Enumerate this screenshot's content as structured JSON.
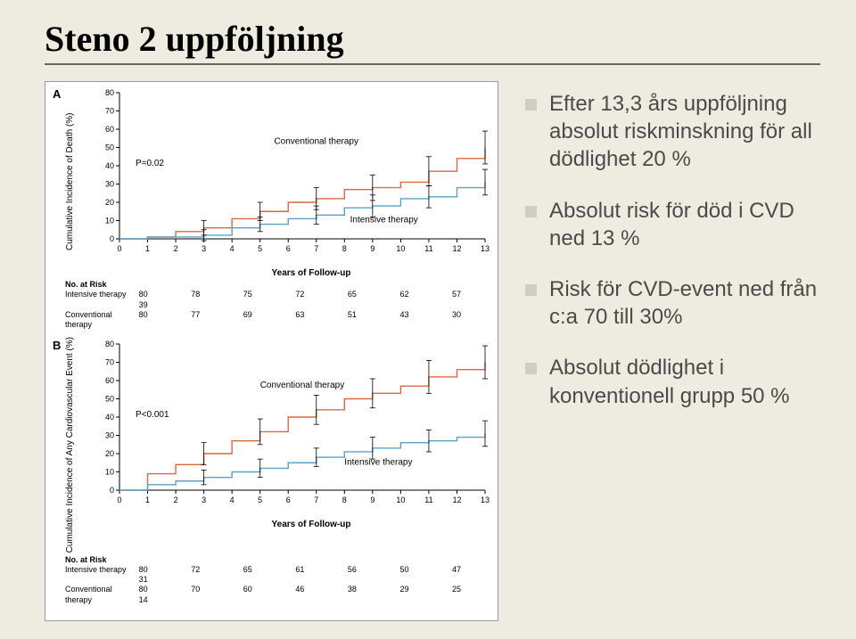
{
  "title": "Steno 2 uppföljning",
  "bullets": [
    "Efter 13,3 års uppföljning absolut riskminskning för all dödlighet 20 %",
    "Absolut risk för död i CVD ned 13 %",
    "Risk för CVD-event ned från c:a 70 till 30%",
    "Absolut dödlighet i konventionell grupp 50 %"
  ],
  "panelA": {
    "letter": "A",
    "ylabel": "Cumulative Incidence of Death (%)",
    "xlabel": "Years of Follow-up",
    "pvalue": "P=0.02",
    "ylim": [
      0,
      80
    ],
    "ytick_step": 10,
    "xlim": [
      0,
      13
    ],
    "xtick_step": 1,
    "series": [
      {
        "name": "Conventional therapy",
        "color": "#d96b3f",
        "points": [
          [
            0,
            0
          ],
          [
            1,
            1
          ],
          [
            2,
            4
          ],
          [
            3,
            6
          ],
          [
            4,
            11
          ],
          [
            5,
            15
          ],
          [
            6,
            20
          ],
          [
            7,
            22
          ],
          [
            8,
            27
          ],
          [
            9,
            28
          ],
          [
            10,
            31
          ],
          [
            11,
            37
          ],
          [
            12,
            44
          ],
          [
            13,
            50
          ]
        ]
      },
      {
        "name": "Intensive therapy",
        "color": "#5aa0c8",
        "points": [
          [
            0,
            0
          ],
          [
            1,
            1
          ],
          [
            2,
            1
          ],
          [
            3,
            2
          ],
          [
            4,
            6
          ],
          [
            5,
            8
          ],
          [
            6,
            11
          ],
          [
            7,
            13
          ],
          [
            8,
            17
          ],
          [
            9,
            18
          ],
          [
            10,
            22
          ],
          [
            11,
            23
          ],
          [
            12,
            28
          ],
          [
            13,
            31
          ]
        ]
      }
    ],
    "label_pos": {
      "conv": [
        5.5,
        52
      ],
      "int": [
        8.2,
        9
      ]
    },
    "error_bars": {
      "conv": [
        [
          3,
          6,
          4
        ],
        [
          5,
          15,
          5
        ],
        [
          7,
          22,
          6
        ],
        [
          9,
          28,
          7
        ],
        [
          11,
          37,
          8
        ],
        [
          13,
          50,
          9
        ]
      ],
      "int": [
        [
          3,
          2,
          3
        ],
        [
          5,
          8,
          4
        ],
        [
          7,
          13,
          5
        ],
        [
          9,
          18,
          6
        ],
        [
          11,
          23,
          6
        ],
        [
          13,
          31,
          7
        ]
      ]
    },
    "risk_head": "No. at Risk",
    "risk": [
      {
        "label": "Intensive therapy",
        "n": [
          "80",
          "78",
          "75",
          "72",
          "65",
          "62",
          "57",
          "39"
        ]
      },
      {
        "label": "Conventional therapy",
        "n": [
          "80",
          "77",
          "69",
          "63",
          "51",
          "43",
          "30",
          ""
        ]
      }
    ]
  },
  "panelB": {
    "letter": "B",
    "ylabel": "Cumulative Incidence of Any Cardiovascular Event (%)",
    "xlabel": "Years of Follow-up",
    "pvalue": "P<0.001",
    "ylim": [
      0,
      80
    ],
    "ytick_step": 10,
    "xlim": [
      0,
      13
    ],
    "xtick_step": 1,
    "series": [
      {
        "name": "Conventional therapy",
        "color": "#d96b3f",
        "points": [
          [
            0,
            0
          ],
          [
            1,
            9
          ],
          [
            2,
            14
          ],
          [
            3,
            20
          ],
          [
            4,
            27
          ],
          [
            5,
            32
          ],
          [
            6,
            40
          ],
          [
            7,
            44
          ],
          [
            8,
            50
          ],
          [
            9,
            53
          ],
          [
            10,
            57
          ],
          [
            11,
            62
          ],
          [
            12,
            66
          ],
          [
            13,
            70
          ]
        ]
      },
      {
        "name": "Intensive therapy",
        "color": "#5aa0c8",
        "points": [
          [
            0,
            0
          ],
          [
            1,
            3
          ],
          [
            2,
            5
          ],
          [
            3,
            7
          ],
          [
            4,
            10
          ],
          [
            5,
            12
          ],
          [
            6,
            15
          ],
          [
            7,
            18
          ],
          [
            8,
            21
          ],
          [
            9,
            23
          ],
          [
            10,
            26
          ],
          [
            11,
            27
          ],
          [
            12,
            29
          ],
          [
            13,
            31
          ]
        ]
      }
    ],
    "label_pos": {
      "conv": [
        5.0,
        56
      ],
      "int": [
        8.0,
        14
      ]
    },
    "error_bars": {
      "conv": [
        [
          3,
          20,
          6
        ],
        [
          5,
          32,
          7
        ],
        [
          7,
          44,
          8
        ],
        [
          9,
          53,
          8
        ],
        [
          11,
          62,
          9
        ],
        [
          13,
          70,
          9
        ]
      ],
      "int": [
        [
          3,
          7,
          4
        ],
        [
          5,
          12,
          5
        ],
        [
          7,
          18,
          5
        ],
        [
          9,
          23,
          6
        ],
        [
          11,
          27,
          6
        ],
        [
          13,
          31,
          7
        ]
      ]
    },
    "risk_head": "No. at Risk",
    "risk": [
      {
        "label": "Intensive therapy",
        "n": [
          "80",
          "72",
          "65",
          "61",
          "56",
          "50",
          "47",
          "31"
        ]
      },
      {
        "label": "Conventional therapy",
        "n": [
          "80",
          "70",
          "60",
          "46",
          "38",
          "29",
          "25",
          "14"
        ]
      }
    ]
  },
  "chart_style": {
    "axis_color": "#000000",
    "axis_fontsize": 9,
    "line_width": 1.4,
    "background": "#ffffff"
  }
}
